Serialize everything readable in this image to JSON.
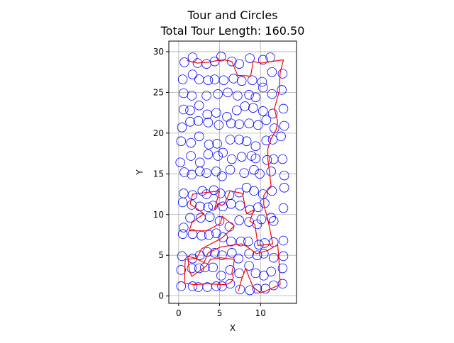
{
  "chart_data": {
    "type": "scatter",
    "title_line1": "Tour and Circles",
    "title_line2": "Total Tour Length: 160.50",
    "xlabel": "X",
    "ylabel": "Y",
    "xlim": [
      -1.2,
      14.4
    ],
    "ylim": [
      -0.9,
      31.3
    ],
    "xticks": [
      0,
      5,
      10
    ],
    "yticks": [
      0,
      5,
      10,
      15,
      20,
      25,
      30
    ],
    "grid": true,
    "colors": {
      "circles": "#0000ff",
      "tour": "#ff0000"
    },
    "circle_radius": 0.55,
    "circles": [
      [
        0.7,
        28.7
      ],
      [
        1.7,
        29.3
      ],
      [
        2.3,
        28.6
      ],
      [
        3.4,
        28.5
      ],
      [
        4.4,
        28.8
      ],
      [
        5.2,
        29.4
      ],
      [
        6.5,
        28.8
      ],
      [
        7.4,
        28.5
      ],
      [
        8.7,
        29.2
      ],
      [
        10.3,
        29.0
      ],
      [
        11.2,
        29.3
      ],
      [
        0.5,
        26.6
      ],
      [
        1.7,
        27.2
      ],
      [
        2.5,
        26.6
      ],
      [
        3.6,
        26.5
      ],
      [
        4.4,
        26.6
      ],
      [
        5.5,
        26.5
      ],
      [
        6.7,
        26.7
      ],
      [
        7.7,
        26.4
      ],
      [
        9.0,
        26.5
      ],
      [
        10.2,
        26.3
      ],
      [
        11.4,
        27.5
      ],
      [
        12.7,
        27.3
      ],
      [
        0.6,
        24.9
      ],
      [
        1.6,
        24.6
      ],
      [
        3.4,
        24.6
      ],
      [
        4.8,
        24.8
      ],
      [
        6.0,
        25.0
      ],
      [
        7.2,
        24.6
      ],
      [
        8.6,
        24.7
      ],
      [
        9.4,
        24.4
      ],
      [
        10.3,
        25.6
      ],
      [
        11.4,
        24.8
      ],
      [
        12.6,
        25.3
      ],
      [
        0.6,
        22.9
      ],
      [
        1.4,
        22.8
      ],
      [
        2.5,
        23.4
      ],
      [
        3.5,
        22.3
      ],
      [
        4.6,
        22.5
      ],
      [
        5.9,
        22.0
      ],
      [
        7.1,
        22.8
      ],
      [
        8.1,
        23.3
      ],
      [
        9.1,
        23.1
      ],
      [
        10.3,
        22.7
      ],
      [
        11.5,
        22.4
      ],
      [
        12.8,
        23.0
      ],
      [
        0.4,
        20.7
      ],
      [
        1.4,
        21.4
      ],
      [
        2.4,
        21.5
      ],
      [
        3.6,
        21.3
      ],
      [
        4.9,
        21.0
      ],
      [
        6.4,
        21.2
      ],
      [
        7.4,
        21.1
      ],
      [
        8.6,
        21.2
      ],
      [
        9.7,
        21.0
      ],
      [
        10.7,
        21.6
      ],
      [
        11.7,
        20.6
      ],
      [
        12.9,
        20.9
      ],
      [
        0.3,
        19.0
      ],
      [
        1.5,
        18.8
      ],
      [
        2.5,
        19.6
      ],
      [
        3.7,
        18.6
      ],
      [
        4.7,
        18.7
      ],
      [
        6.3,
        19.2
      ],
      [
        7.4,
        19.2
      ],
      [
        8.3,
        19.0
      ],
      [
        9.4,
        18.4
      ],
      [
        10.7,
        19.1
      ],
      [
        11.5,
        19.2
      ],
      [
        12.5,
        19.6
      ],
      [
        0.2,
        16.4
      ],
      [
        1.5,
        17.2
      ],
      [
        2.6,
        16.4
      ],
      [
        3.6,
        17.4
      ],
      [
        4.8,
        17.2
      ],
      [
        5.4,
        17.6
      ],
      [
        6.5,
        16.8
      ],
      [
        7.7,
        17.1
      ],
      [
        8.9,
        17.2
      ],
      [
        9.4,
        16.9
      ],
      [
        10.8,
        16.7
      ],
      [
        11.6,
        16.8
      ],
      [
        12.7,
        16.8
      ],
      [
        0.7,
        15.2
      ],
      [
        1.6,
        14.9
      ],
      [
        2.6,
        15.3
      ],
      [
        3.4,
        15.1
      ],
      [
        4.6,
        15.3
      ],
      [
        5.3,
        14.7
      ],
      [
        6.3,
        15.5
      ],
      [
        8.0,
        15.1
      ],
      [
        9.2,
        15.5
      ],
      [
        9.9,
        15.0
      ],
      [
        11.3,
        15.3
      ],
      [
        12.9,
        14.8
      ],
      [
        0.6,
        12.6
      ],
      [
        1.7,
        12.4
      ],
      [
        2.9,
        12.9
      ],
      [
        3.4,
        12.5
      ],
      [
        4.3,
        13.0
      ],
      [
        5.1,
        12.6
      ],
      [
        6.2,
        12.4
      ],
      [
        7.4,
        12.7
      ],
      [
        8.3,
        13.3
      ],
      [
        9.2,
        12.9
      ],
      [
        10.3,
        12.5
      ],
      [
        11.4,
        12.9
      ],
      [
        12.9,
        13.3
      ],
      [
        0.5,
        11.5
      ],
      [
        1.6,
        11.2
      ],
      [
        2.6,
        11.0
      ],
      [
        3.6,
        10.9
      ],
      [
        4.2,
        11.1
      ],
      [
        5.4,
        11.0
      ],
      [
        6.4,
        11.3
      ],
      [
        7.5,
        11.1
      ],
      [
        8.7,
        10.6
      ],
      [
        9.7,
        10.9
      ],
      [
        10.5,
        11.4
      ],
      [
        11.3,
        9.6
      ],
      [
        12.8,
        10.8
      ],
      [
        0.6,
        8.4
      ],
      [
        1.4,
        9.6
      ],
      [
        2.7,
        9.6
      ],
      [
        3.8,
        9.7
      ],
      [
        5.0,
        9.2
      ],
      [
        6.2,
        8.5
      ],
      [
        7.4,
        9.3
      ],
      [
        8.6,
        9.1
      ],
      [
        9.6,
        8.8
      ],
      [
        10.1,
        9.4
      ],
      [
        11.6,
        9.2
      ],
      [
        0.5,
        7.6
      ],
      [
        1.7,
        7.6
      ],
      [
        2.8,
        7.4
      ],
      [
        3.7,
        7.5
      ],
      [
        4.6,
        7.7
      ],
      [
        5.4,
        7.2
      ],
      [
        6.4,
        6.7
      ],
      [
        7.6,
        6.7
      ],
      [
        8.5,
        6.7
      ],
      [
        9.8,
        6.3
      ],
      [
        10.5,
        6.5
      ],
      [
        11.6,
        6.6
      ],
      [
        12.8,
        6.8
      ],
      [
        0.4,
        4.9
      ],
      [
        1.7,
        4.6
      ],
      [
        2.6,
        5.0
      ],
      [
        3.5,
        5.4
      ],
      [
        4.4,
        5.3
      ],
      [
        5.3,
        5.0
      ],
      [
        6.5,
        5.3
      ],
      [
        7.3,
        4.6
      ],
      [
        8.6,
        5.2
      ],
      [
        9.6,
        5.0
      ],
      [
        10.4,
        5.2
      ],
      [
        11.6,
        4.7
      ],
      [
        12.8,
        4.9
      ],
      [
        0.3,
        3.2
      ],
      [
        1.6,
        3.4
      ],
      [
        2.5,
        3.4
      ],
      [
        3.2,
        3.5
      ],
      [
        4.2,
        3.5
      ],
      [
        5.2,
        2.5
      ],
      [
        6.3,
        3.2
      ],
      [
        7.4,
        2.8
      ],
      [
        8.6,
        3.7
      ],
      [
        9.4,
        2.8
      ],
      [
        10.4,
        2.5
      ],
      [
        11.3,
        3.0
      ],
      [
        12.7,
        3.4
      ],
      [
        0.3,
        1.2
      ],
      [
        1.7,
        1.2
      ],
      [
        2.4,
        1.1
      ],
      [
        3.5,
        1.1
      ],
      [
        4.6,
        1.2
      ],
      [
        5.3,
        1.2
      ],
      [
        6.3,
        1.5
      ],
      [
        7.5,
        0.8
      ],
      [
        8.7,
        0.7
      ],
      [
        9.6,
        0.9
      ],
      [
        10.6,
        0.9
      ],
      [
        11.6,
        1.3
      ],
      [
        12.7,
        1.5
      ]
    ],
    "tour": [
      [
        1.0,
        28.9
      ],
      [
        2.3,
        28.6
      ],
      [
        3.6,
        28.7
      ],
      [
        4.6,
        28.9
      ],
      [
        5.5,
        29.0
      ],
      [
        6.5,
        28.8
      ],
      [
        7.2,
        27.1
      ],
      [
        8.8,
        27.0
      ],
      [
        9.1,
        28.8
      ],
      [
        10.1,
        28.6
      ],
      [
        12.8,
        29.0
      ],
      [
        12.4,
        27.4
      ],
      [
        12.3,
        25.2
      ],
      [
        11.7,
        23.0
      ],
      [
        12.1,
        21.4
      ],
      [
        11.9,
        20.4
      ],
      [
        11.3,
        19.3
      ],
      [
        10.9,
        18.1
      ],
      [
        10.9,
        16.8
      ],
      [
        11.1,
        15.2
      ],
      [
        11.3,
        13.4
      ],
      [
        10.7,
        12.8
      ],
      [
        10.4,
        12.3
      ],
      [
        10.4,
        11.2
      ],
      [
        10.9,
        9.4
      ],
      [
        11.5,
        6.4
      ],
      [
        9.7,
        6.2
      ],
      [
        9.3,
        8.8
      ],
      [
        8.7,
        9.2
      ],
      [
        9.2,
        10.6
      ],
      [
        8.3,
        10.1
      ],
      [
        7.8,
        12.6
      ],
      [
        6.3,
        12.9
      ],
      [
        5.6,
        11.3
      ],
      [
        5.2,
        11.1
      ],
      [
        4.9,
        11.4
      ],
      [
        4.4,
        10.7
      ],
      [
        5.0,
        12.9
      ],
      [
        1.7,
        12.5
      ],
      [
        1.4,
        11.3
      ],
      [
        3.1,
        10.1
      ],
      [
        1.6,
        9.0
      ],
      [
        1.3,
        8.0
      ],
      [
        3.4,
        8.0
      ],
      [
        5.1,
        8.9
      ],
      [
        5.3,
        9.8
      ],
      [
        6.8,
        8.6
      ],
      [
        5.6,
        7.4
      ],
      [
        5.1,
        7.0
      ],
      [
        2.8,
        5.8
      ],
      [
        2.2,
        4.6
      ],
      [
        1.1,
        4.9
      ],
      [
        1.3,
        3.2
      ],
      [
        1.6,
        2.4
      ],
      [
        3.4,
        3.7
      ],
      [
        3.9,
        4.5
      ],
      [
        5.1,
        4.7
      ],
      [
        6.8,
        4.5
      ],
      [
        6.7,
        3.8
      ],
      [
        6.5,
        2.8
      ],
      [
        6.7,
        2.3
      ],
      [
        6.5,
        1.8
      ],
      [
        6.1,
        1.5
      ],
      [
        5.6,
        1.4
      ],
      [
        3.5,
        1.5
      ],
      [
        1.9,
        1.4
      ],
      [
        0.7,
        1.6
      ],
      [
        0.8,
        4.5
      ],
      [
        2.1,
        4.6
      ],
      [
        3.1,
        4.1
      ],
      [
        3.6,
        5.3
      ],
      [
        5.1,
        6.0
      ],
      [
        6.3,
        6.2
      ],
      [
        7.7,
        6.4
      ],
      [
        8.3,
        6.1
      ],
      [
        9.5,
        5.2
      ],
      [
        10.9,
        5.6
      ],
      [
        12.1,
        6.3
      ],
      [
        12.3,
        3.7
      ],
      [
        12.4,
        1.4
      ],
      [
        10.6,
        0.6
      ],
      [
        10.0,
        0.4
      ],
      [
        9.1,
        1.1
      ],
      [
        8.6,
        2.3
      ],
      [
        8.2,
        3.4
      ],
      [
        7.7,
        2.1
      ],
      [
        7.3,
        0.6
      ]
    ]
  }
}
